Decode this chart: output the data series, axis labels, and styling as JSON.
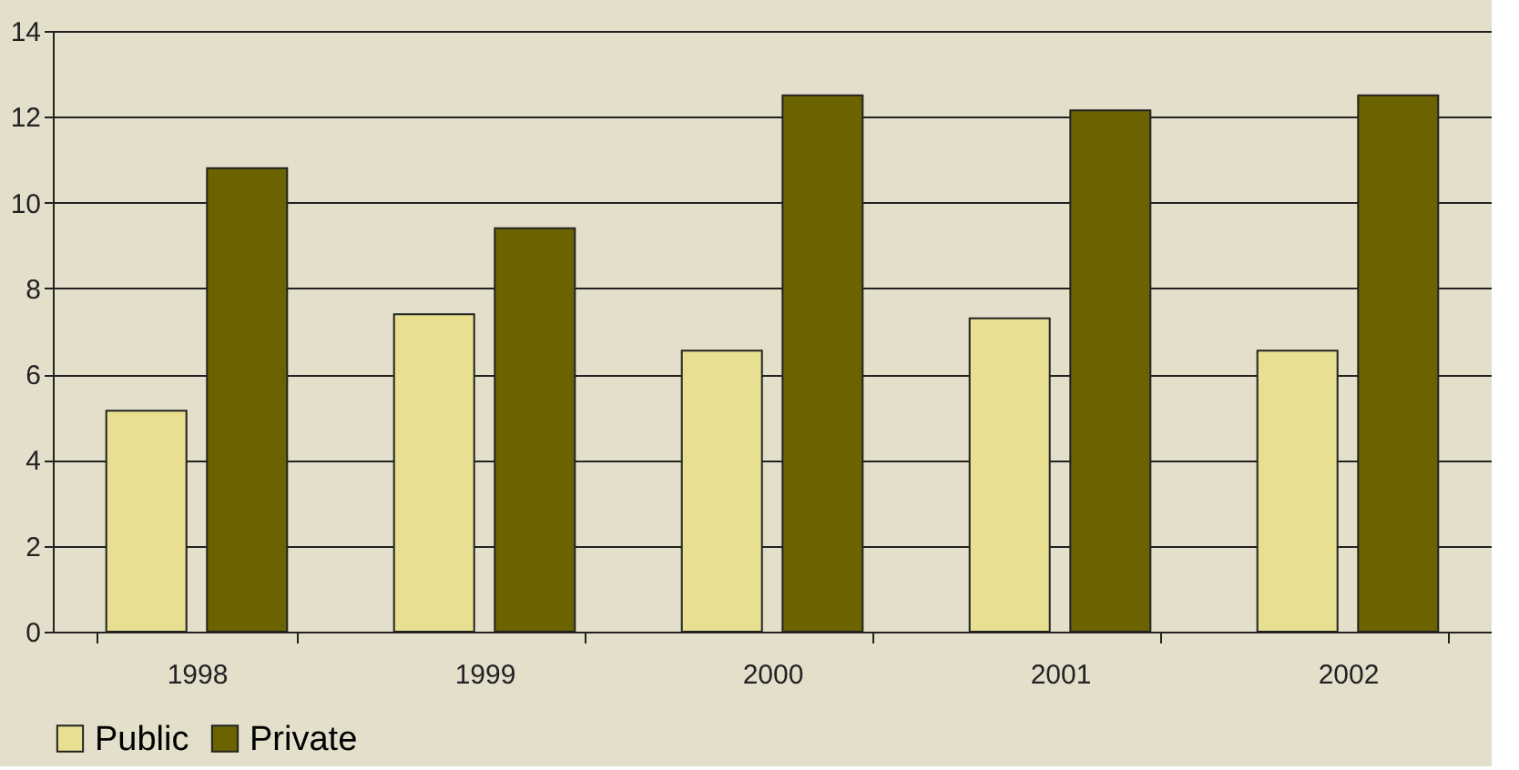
{
  "chart_data": {
    "type": "bar",
    "categories": [
      "1998",
      "1999",
      "2000",
      "2001",
      "2002"
    ],
    "series": [
      {
        "name": "Public",
        "color": "#e8e090",
        "values": [
          5.15,
          7.4,
          6.55,
          7.3,
          6.55
        ]
      },
      {
        "name": "Private",
        "color": "#6b6200",
        "values": [
          10.8,
          9.4,
          12.5,
          12.15,
          12.5
        ]
      }
    ],
    "ylim": [
      0,
      14
    ],
    "yticks": [
      0,
      2,
      4,
      6,
      8,
      10,
      12,
      14
    ],
    "grid": "y",
    "legend": "bottom"
  }
}
